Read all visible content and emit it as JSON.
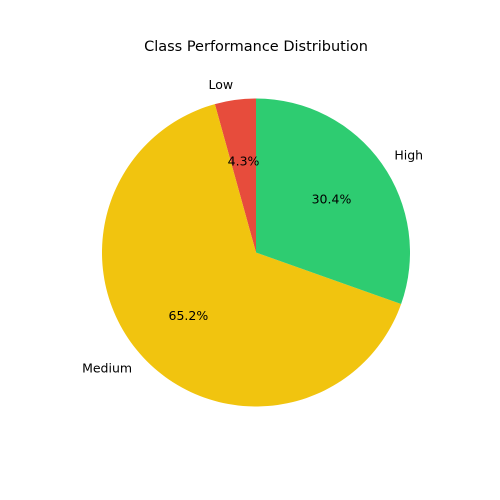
{
  "chart_data": {
    "type": "pie",
    "title": "Class Performance Distribution",
    "start_angle_deg": 90,
    "direction": "counterclockwise",
    "slices": [
      {
        "label": "Low",
        "value": 4.3,
        "percent_label": "4.3%",
        "color": "#e74c3c"
      },
      {
        "label": "Medium",
        "value": 65.2,
        "percent_label": "65.2%",
        "color": "#f1c40f"
      },
      {
        "label": "High",
        "value": 30.4,
        "percent_label": "30.4%",
        "color": "#2ecc71"
      }
    ],
    "legend": "none"
  }
}
